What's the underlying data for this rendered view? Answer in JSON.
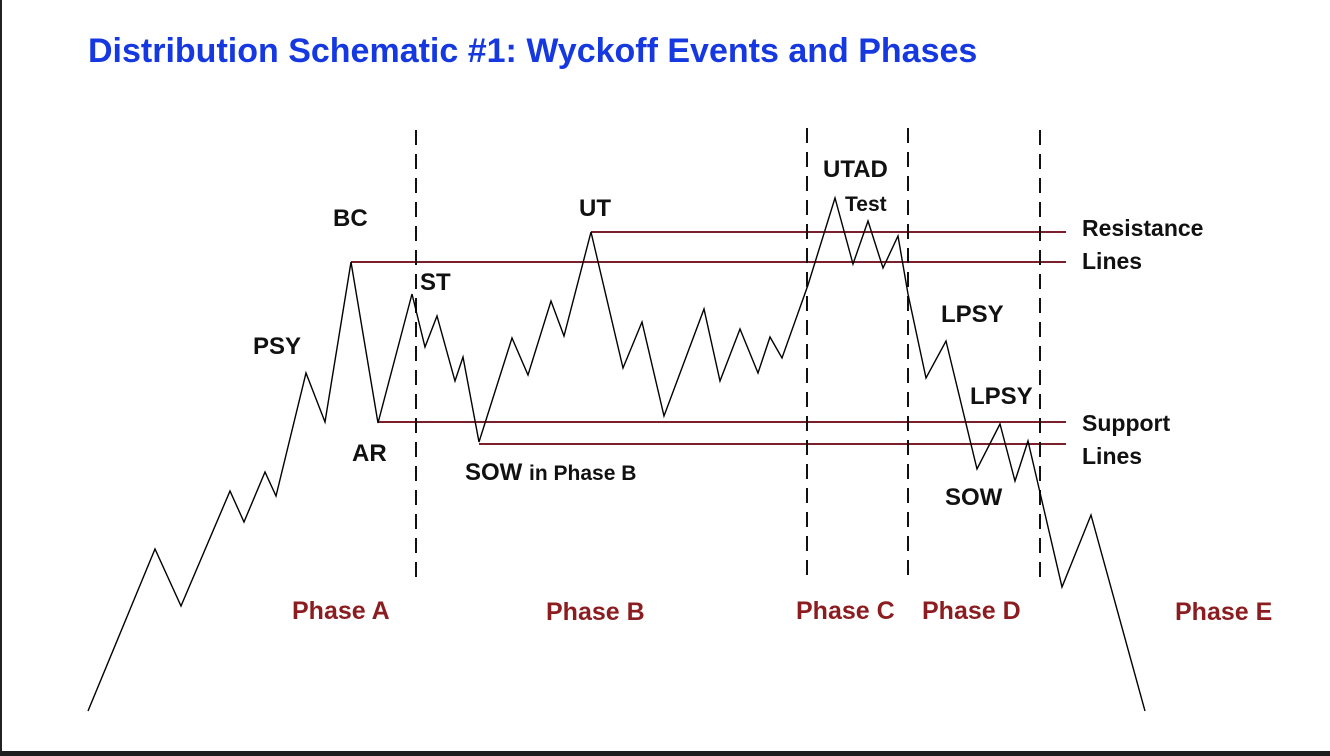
{
  "title": "Distribution Schematic #1: Wyckoff Events and Phases",
  "colors": {
    "title": "#1638e0",
    "phase_labels": "#8b1c1f",
    "range_lines": "#7a1f2b",
    "price_line": "#000000"
  },
  "events": {
    "psy": "PSY",
    "bc": "BC",
    "ar": "AR",
    "st": "ST",
    "sow_b": "SOW",
    "sow_b_suffix": "in Phase B",
    "ut": "UT",
    "utad": "UTAD",
    "test": "Test",
    "lpsy1": "LPSY",
    "lpsy2": "LPSY",
    "sow": "SOW"
  },
  "lines": {
    "resistance_1": "Resistance",
    "resistance_2": "Lines",
    "support_1": "Support",
    "support_2": "Lines"
  },
  "phases": [
    "Phase A",
    "Phase B",
    "Phase C",
    "Phase D",
    "Phase E"
  ]
}
